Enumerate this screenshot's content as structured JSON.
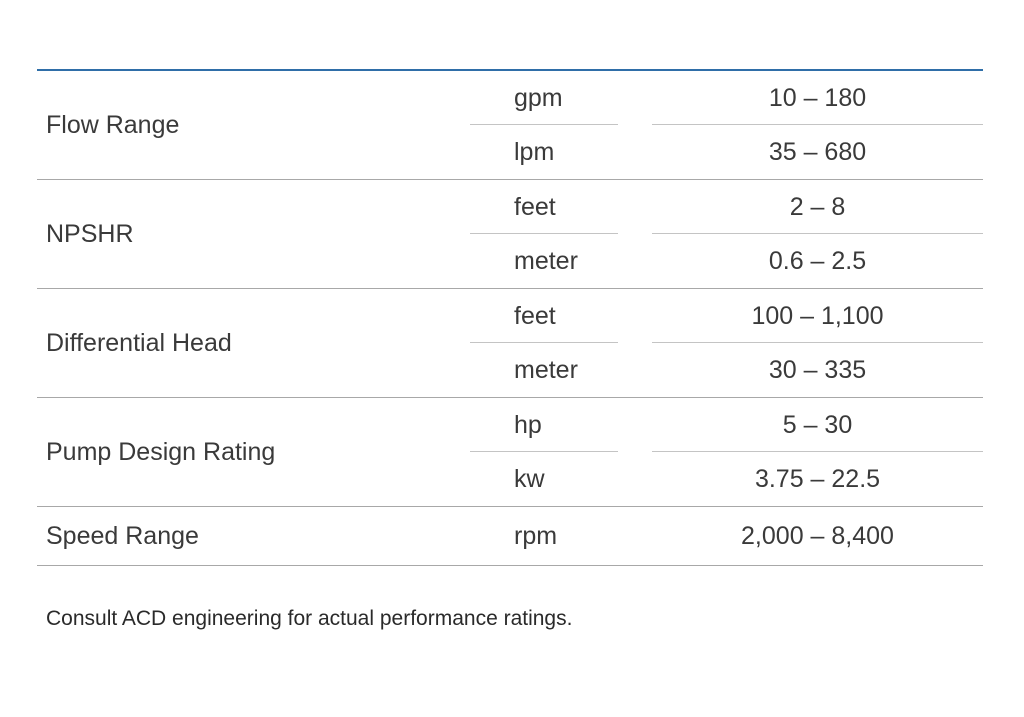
{
  "spec_table": {
    "rows": [
      {
        "label": "Flow Range",
        "subs": [
          {
            "unit": "gpm",
            "value": "10 – 180"
          },
          {
            "unit": "lpm",
            "value": "35 – 680"
          }
        ]
      },
      {
        "label": "NPSHR",
        "subs": [
          {
            "unit": "feet",
            "value": "2 – 8"
          },
          {
            "unit": "meter",
            "value": "0.6 – 2.5"
          }
        ]
      },
      {
        "label": "Differential Head",
        "subs": [
          {
            "unit": "feet",
            "value": "100 – 1,100"
          },
          {
            "unit": "meter",
            "value": "30 – 335"
          }
        ]
      },
      {
        "label": "Pump Design Rating",
        "subs": [
          {
            "unit": "hp",
            "value": "5 – 30"
          },
          {
            "unit": "kw",
            "value": "3.75 – 22.5"
          }
        ]
      },
      {
        "label": "Speed Range",
        "subs": [
          {
            "unit": "rpm",
            "value": "2,000 – 8,400"
          }
        ]
      }
    ]
  },
  "footnote": "Consult ACD engineering for actual performance ratings.",
  "colors": {
    "top_rule": "#2f6ea8",
    "row_rule": "#a8a8a8",
    "text": "#3a3a3a"
  }
}
